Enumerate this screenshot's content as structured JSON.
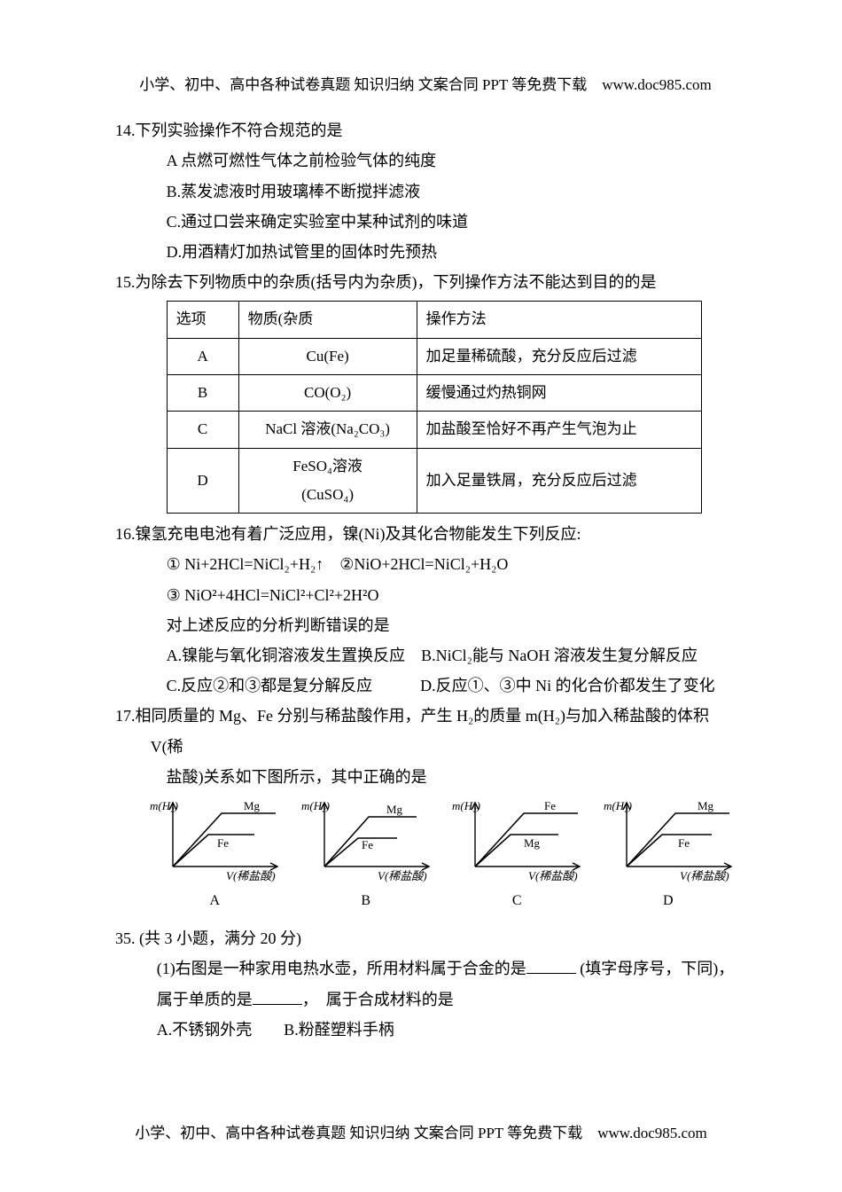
{
  "header": "小学、初中、高中各种试卷真题 知识归纳 文案合同 PPT 等免费下载　www.doc985.com",
  "footer": "小学、初中、高中各种试卷真题 知识归纳 文案合同 PPT 等免费下载　www.doc985.com",
  "q14": {
    "stem": "14.下列实验操作不符合规范的是",
    "A": "A 点燃可燃性气体之前检验气体的纯度",
    "B": "B.蒸发滤液时用玻璃棒不断搅拌滤液",
    "C": "C.通过口尝来确定实验室中某种试剂的味道",
    "D": "D.用酒精灯加热试管里的固体时先预热"
  },
  "q15": {
    "stem": "15.为除去下列物质中的杂质(括号内为杂质)，下列操作方法不能达到目的的是",
    "table": {
      "columns": [
        "选项",
        "物质(杂质",
        "操作方法"
      ],
      "rows": [
        [
          "A",
          "Cu(Fe)",
          "加足量稀硫酸，充分反应后过滤"
        ],
        [
          "B",
          "CO(O₂)",
          "缓慢通过灼热铜网"
        ],
        [
          "C",
          "NaCl 溶液(Na₂CO₃)",
          "加盐酸至恰好不再产生气泡为止"
        ],
        [
          "D",
          "FeSO₄溶液 (CuSO₄)",
          "加入足量铁屑，充分反应后过滤"
        ]
      ],
      "col_widths": [
        "60px",
        "180px",
        "300px"
      ]
    }
  },
  "q16": {
    "stem": "16.镍氢充电电池有着广泛应用，镍(Ni)及其化合物能发生下列反应:",
    "eq1": "① Ni+2HCl=NiCl₂+H₂↑　②NiO+2HCl=NiCl₂+H₂O",
    "eq2": "③ NiO²+4HCl=NiCl²+Cl²+2H²O",
    "judge": "对上述反应的分析判断错误的是",
    "A": "A.镍能与氧化铜溶液发生置换反应　B.NiCl₂能与 NaOH 溶液发生复分解反应",
    "C": "C.反应②和③都是复分解反应　　　D.反应①、③中 Ni 的化合价都发生了变化"
  },
  "q17": {
    "stem": "17.相同质量的 Mg、Fe 分别与稀盐酸作用，产生 H₂的质量 m(H₂)与加入稀盐酸的体积 V(稀",
    "stem2": "盐酸)关系如下图所示，其中正确的是",
    "charts": {
      "y_label": "m(H₂)",
      "x_label": "V(稀盐酸)",
      "axis_color": "#000000",
      "line_color": "#000000",
      "text_color": "#000000",
      "font_size": 13,
      "items": [
        {
          "label": "A",
          "top_series": "Mg",
          "bottom_series": "Fe",
          "top_first": true,
          "same_slope": true,
          "top_longer": true
        },
        {
          "label": "B",
          "top_series": "Mg",
          "bottom_series": "Fe",
          "top_first": true,
          "same_slope": true,
          "top_longer": false
        },
        {
          "label": "C",
          "top_series": "Fe",
          "bottom_series": "Mg",
          "top_first": false,
          "same_slope": true,
          "top_longer": true
        },
        {
          "label": "D",
          "top_series": "Mg",
          "bottom_series": "Fe",
          "top_first": true,
          "same_slope": true,
          "top_longer": true
        }
      ]
    }
  },
  "q35": {
    "stem": "35. (共 3 小题，满分 20 分)",
    "line1a": "(1)右图是一种家用电热水壶，所用材料属于合金的是",
    "line1b": " (填字母序号，下同)，",
    "line2a": "属于单质的是",
    "line2b": "，　属于合成材料的是",
    "line3": "A.不锈钢外壳　　B.粉醛塑料手柄"
  }
}
